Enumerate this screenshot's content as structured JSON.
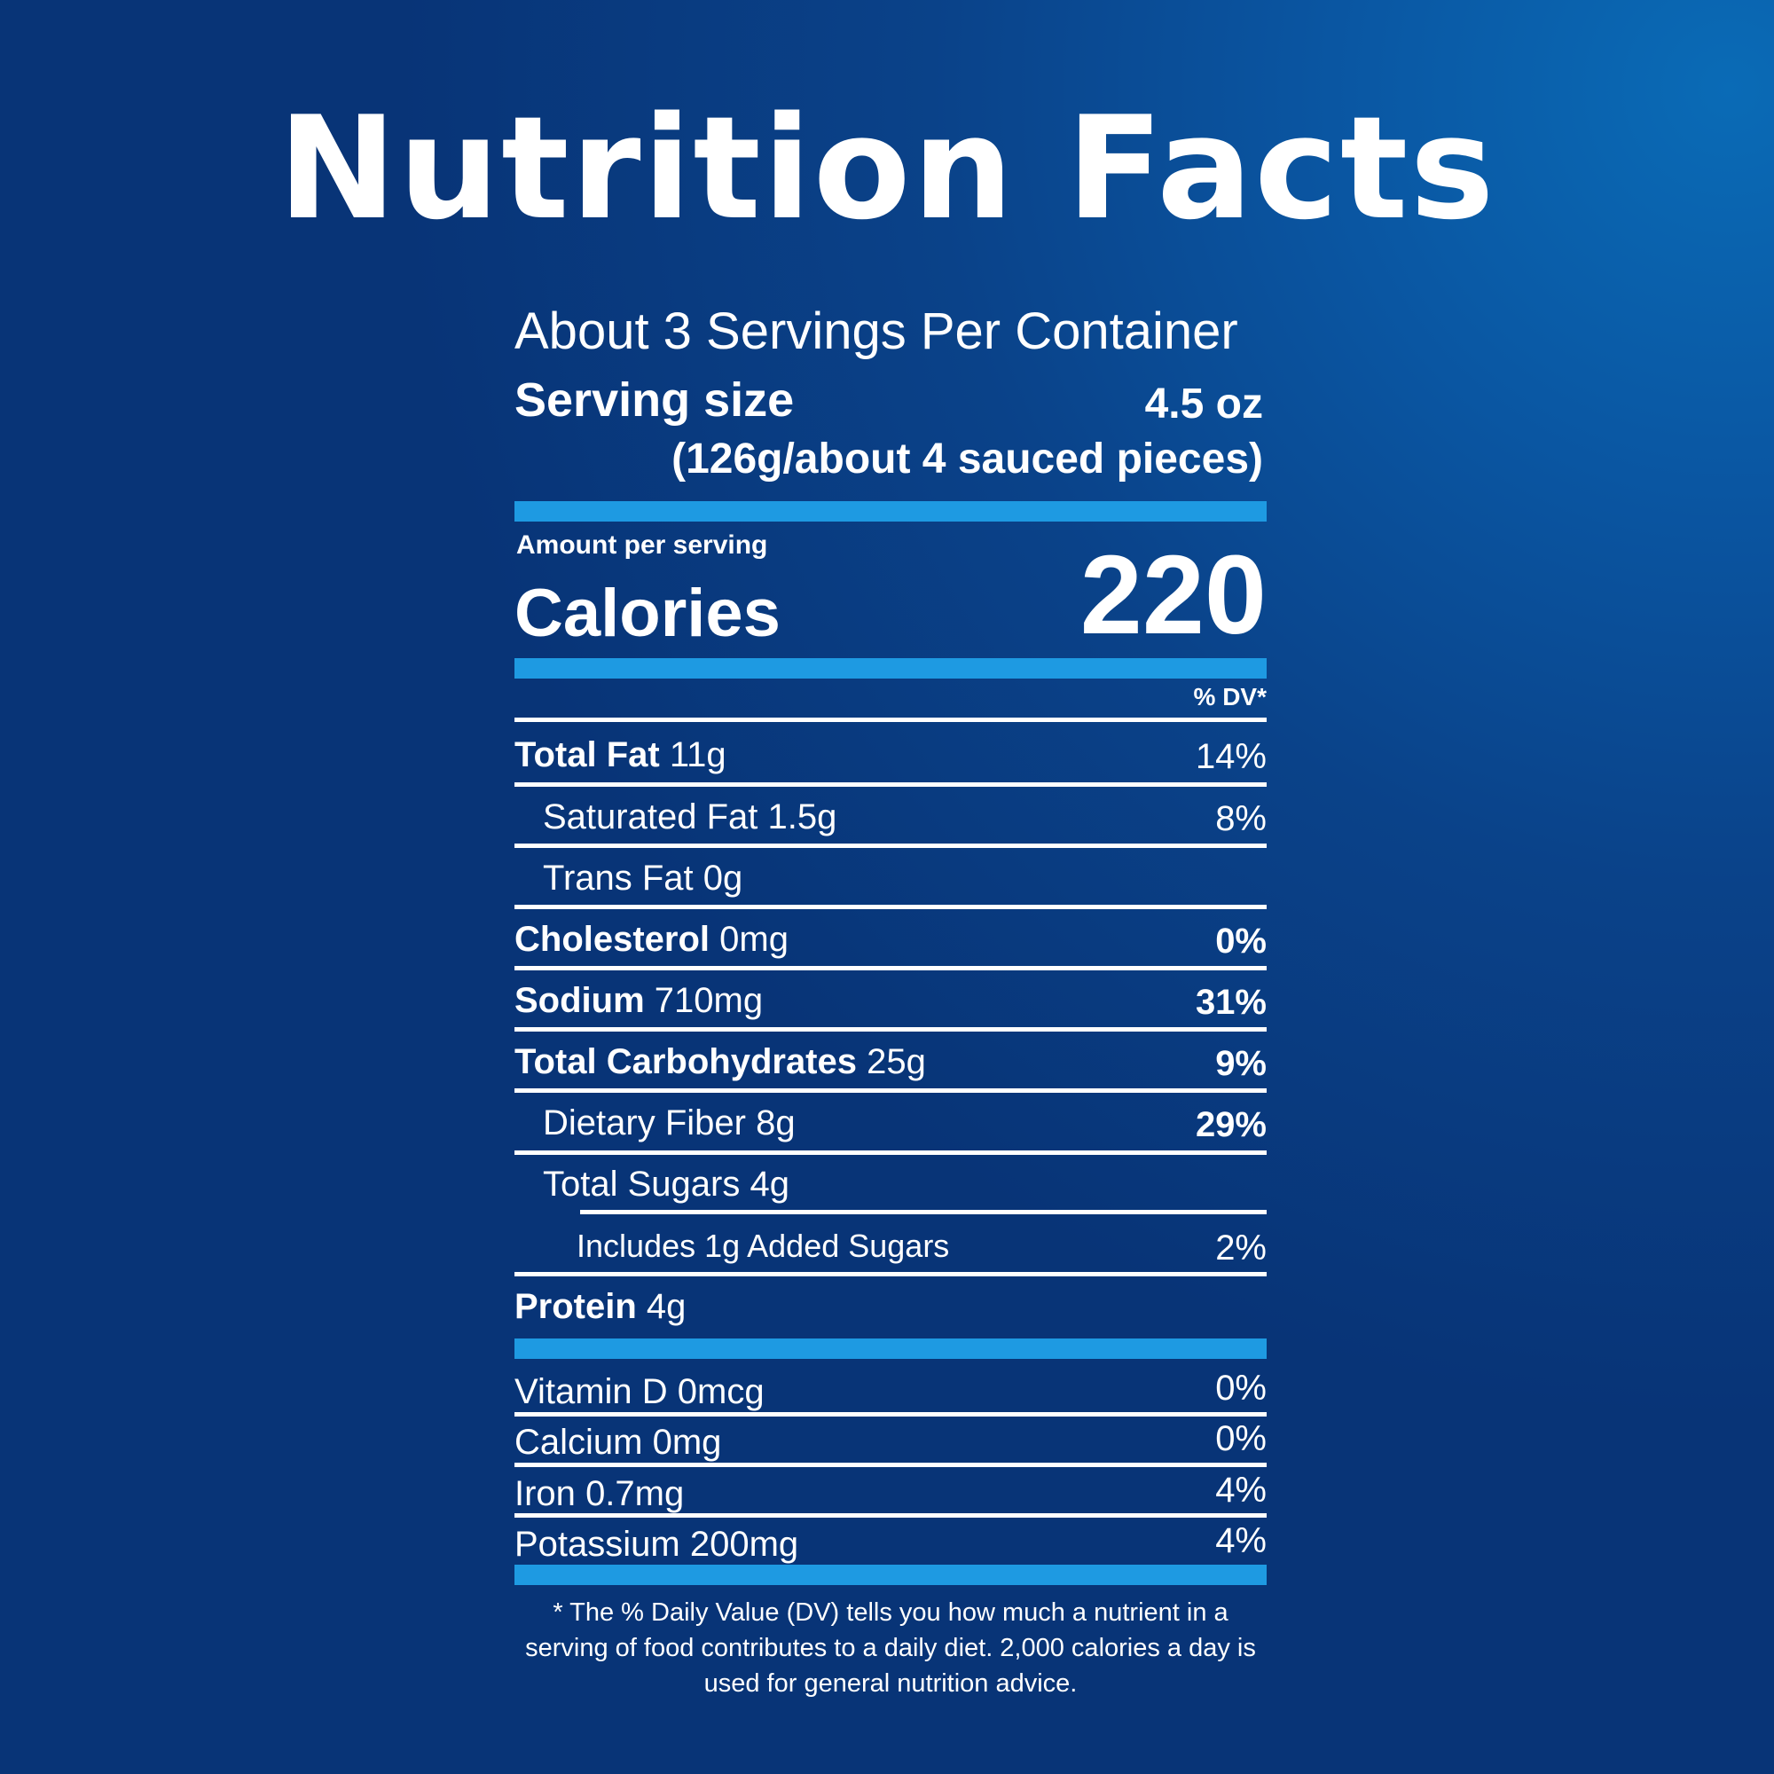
{
  "title": "Nutrition Facts",
  "servings_per_container": "About 3 Servings Per Container",
  "serving_size": {
    "label": "Serving size",
    "value": "4.5 oz",
    "detail": "(126g/about 4 sauced pieces)"
  },
  "amount_per_serving": "Amount per serving",
  "calories": {
    "label": "Calories",
    "value": "220"
  },
  "dv_header": "% DV*",
  "nutrients": [
    {
      "name": "Total Fat",
      "amount": "11g",
      "dv": "14%"
    },
    {
      "name": "Saturated Fat",
      "amount": "1.5g",
      "dv": "8%"
    },
    {
      "name": "Trans Fat",
      "amount": "0g",
      "dv": ""
    },
    {
      "name": "Cholesterol",
      "amount": "0mg",
      "dv": "0%"
    },
    {
      "name": "Sodium",
      "amount": "710mg",
      "dv": "31%"
    },
    {
      "name": "Total Carbohydrates",
      "amount": "25g",
      "dv": "9%"
    },
    {
      "name": "Dietary Fiber",
      "amount": "8g",
      "dv": "29%"
    },
    {
      "name": "Total Sugars",
      "amount": "4g",
      "dv": ""
    },
    {
      "name": "Includes 1g Added Sugars",
      "amount": "",
      "dv": "2%"
    },
    {
      "name": "Protein",
      "amount": "4g",
      "dv": ""
    }
  ],
  "vitamins": [
    {
      "name": "Vitamin D",
      "amount": "0mcg",
      "dv": "0%"
    },
    {
      "name": "Calcium",
      "amount": "0mg",
      "dv": "0%"
    },
    {
      "name": "Iron",
      "amount": "0.7mg",
      "dv": "4%"
    },
    {
      "name": "Potassium",
      "amount": "200mg",
      "dv": "4%"
    }
  ],
  "footnote": "* The % Daily Value (DV) tells you how much a nutrient in a serving of food contributes to a daily diet. 2,000 calories a day is used for general nutrition advice.",
  "colors": {
    "background": "#0a4289",
    "accent_bar": "#1e9ae2",
    "text": "#ffffff"
  }
}
